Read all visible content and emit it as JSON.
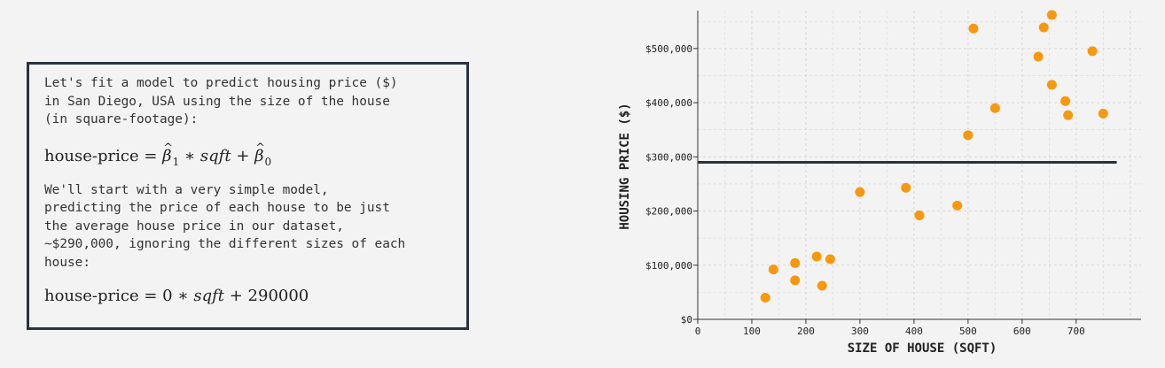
{
  "panel": {
    "intro_lines": [
      "Let's fit a model to predict housing price ($)",
      "in San Diego, USA using the size of the house",
      "(in square-footage):"
    ],
    "eq1": {
      "lhs": "house-price",
      "b1": "β",
      "b1_sub": "1",
      "times": "∗",
      "var": "sqft",
      "plus": "+",
      "b0": "β",
      "b0_sub": "0"
    },
    "body_lines": [
      "We'll start with a very simple model,",
      "predicting the price of each house to be just",
      "the average house price in our dataset,",
      "~$290,000, ignoring the different sizes of each",
      "house:"
    ],
    "eq2": {
      "lhs": "house-price",
      "coef": "0",
      "times": "∗",
      "var": "sqft",
      "plus": "+",
      "intercept": "290000"
    }
  },
  "chart_data": {
    "type": "scatter",
    "xlabel": "SIZE OF HOUSE (SQFT)",
    "ylabel": "HOUSING PRICE ($)",
    "xlim": [
      0,
      820
    ],
    "ylim": [
      0,
      570000
    ],
    "x_ticks": [
      0,
      100,
      200,
      300,
      400,
      500,
      600,
      700
    ],
    "y_ticks": [
      0,
      100000,
      200000,
      300000,
      400000,
      500000
    ],
    "y_tick_labels": [
      "$0",
      "$100,000",
      "$200,000",
      "$300,000",
      "$400,000",
      "$500,000"
    ],
    "grid": true,
    "points": [
      {
        "x": 125,
        "y": 40000
      },
      {
        "x": 140,
        "y": 92000
      },
      {
        "x": 180,
        "y": 104000
      },
      {
        "x": 180,
        "y": 72000
      },
      {
        "x": 220,
        "y": 116000
      },
      {
        "x": 230,
        "y": 62000
      },
      {
        "x": 245,
        "y": 111000
      },
      {
        "x": 300,
        "y": 235000
      },
      {
        "x": 385,
        "y": 243000
      },
      {
        "x": 410,
        "y": 192000
      },
      {
        "x": 480,
        "y": 210000
      },
      {
        "x": 500,
        "y": 340000
      },
      {
        "x": 510,
        "y": 537000
      },
      {
        "x": 550,
        "y": 390000
      },
      {
        "x": 630,
        "y": 485000
      },
      {
        "x": 640,
        "y": 539000
      },
      {
        "x": 655,
        "y": 562000
      },
      {
        "x": 655,
        "y": 433000
      },
      {
        "x": 680,
        "y": 403000
      },
      {
        "x": 685,
        "y": 377000
      },
      {
        "x": 730,
        "y": 495000
      },
      {
        "x": 750,
        "y": 380000
      }
    ],
    "fit_line": {
      "intercept": 290000,
      "slope": 0
    },
    "colors": {
      "points": "#f7980f",
      "line": "#2a3240",
      "axis": "#333333",
      "grid": "#d9d9d9"
    }
  }
}
